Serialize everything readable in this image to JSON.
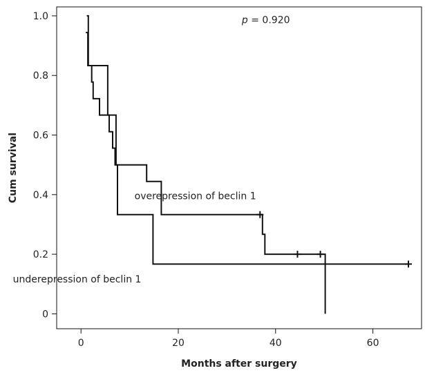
{
  "chart_data": {
    "type": "line",
    "xlabel": "Months after surgery",
    "ylabel": "Cum survival",
    "xlim": [
      -5,
      70
    ],
    "ylim": [
      -0.05,
      1.03
    ],
    "xticks": [
      0,
      20,
      40,
      60
    ],
    "xtick_labels": [
      "0",
      "20",
      "40",
      "60"
    ],
    "yticks": [
      0,
      0.2,
      0.4,
      0.6,
      0.8,
      1.0
    ],
    "ytick_labels": [
      "0",
      "0.2",
      "0.4",
      "0.6",
      "0.8",
      "1.0"
    ],
    "grid": false,
    "step": true,
    "annotations": [
      {
        "text_prefix": "p",
        "text": " = 0.920",
        "x": 38,
        "y": 0.975
      },
      {
        "text": "overepression of beclin 1",
        "x": 23.5,
        "y": 0.385
      },
      {
        "text": "underepression of beclin 1",
        "x": -0.8,
        "y": 0.105
      }
    ],
    "series": [
      {
        "points": [
          [
            1.2,
            1.0
          ],
          [
            1.5,
            1.0
          ],
          [
            1.5,
            0.833
          ],
          [
            5.5,
            0.833
          ],
          [
            5.5,
            0.667
          ],
          [
            7.2,
            0.667
          ],
          [
            7.2,
            0.5
          ],
          [
            13.5,
            0.5
          ],
          [
            13.5,
            0.444
          ],
          [
            16.5,
            0.444
          ],
          [
            16.5,
            0.333
          ],
          [
            37.3,
            0.333
          ],
          [
            37.3,
            0.267
          ],
          [
            37.8,
            0.267
          ],
          [
            37.8,
            0.2
          ],
          [
            50.2,
            0.2
          ],
          [
            50.2,
            0.0
          ]
        ],
        "censored": [
          [
            36.8,
            0.333
          ],
          [
            44.5,
            0.2
          ],
          [
            49.2,
            0.2
          ]
        ]
      },
      {
        "points": [
          [
            1.0,
            0.944
          ],
          [
            1.4,
            0.944
          ],
          [
            1.4,
            0.833
          ],
          [
            2.2,
            0.833
          ],
          [
            2.2,
            0.778
          ],
          [
            2.5,
            0.778
          ],
          [
            2.5,
            0.722
          ],
          [
            3.8,
            0.722
          ],
          [
            3.8,
            0.667
          ],
          [
            5.8,
            0.667
          ],
          [
            5.8,
            0.611
          ],
          [
            6.5,
            0.611
          ],
          [
            6.5,
            0.556
          ],
          [
            7.0,
            0.556
          ],
          [
            7.0,
            0.5
          ],
          [
            7.5,
            0.5
          ],
          [
            7.5,
            0.333
          ],
          [
            14.8,
            0.333
          ],
          [
            14.8,
            0.167
          ],
          [
            67.5,
            0.167
          ]
        ],
        "censored": [
          [
            67.3,
            0.167
          ]
        ]
      }
    ]
  }
}
